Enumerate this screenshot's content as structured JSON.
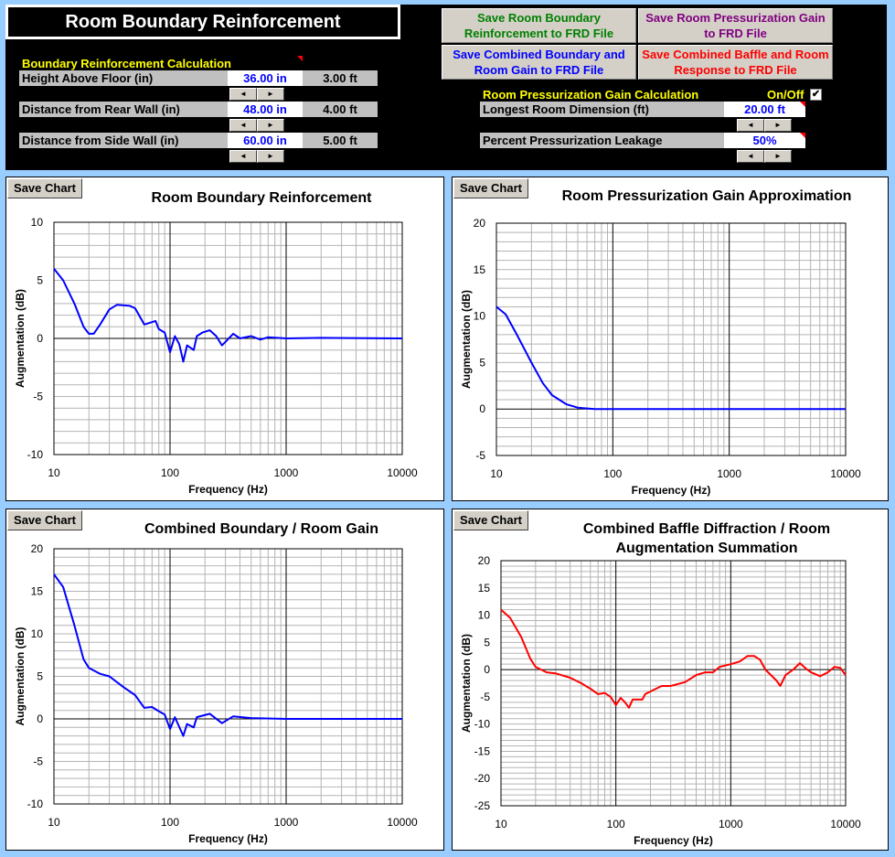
{
  "header": {
    "title": "Room Boundary Reinforcement"
  },
  "boundary": {
    "section_label": "Boundary Reinforcement Calculation",
    "rows": [
      {
        "label": "Height Above Floor (in)",
        "value": "36.00 in",
        "feet": "3.00 ft"
      },
      {
        "label": "Distance from Rear Wall (in)",
        "value": "48.00 in",
        "feet": "4.00 ft"
      },
      {
        "label": "Distance from Side Wall (in)",
        "value": "60.00 in",
        "feet": "5.00 ft"
      }
    ]
  },
  "pressurization": {
    "section_label": "Room Pressurization Gain Calculation",
    "onoff_label": "On/Off",
    "onoff_checked": true,
    "check_glyph": "✔",
    "rows": [
      {
        "label": "Longest Room Dimension (ft)",
        "value": "20.00 ft"
      },
      {
        "label": "Percent Pressurization Leakage",
        "value": "50%"
      }
    ]
  },
  "spinner": {
    "left": "◄",
    "right": "►"
  },
  "buttons": [
    {
      "label": "Save Room Boundary Reinforcement to FRD File",
      "color": "#008000"
    },
    {
      "label": "Save Room Pressurization Gain to FRD File",
      "color": "#800080"
    },
    {
      "label": "Save Combined Boundary and Room Gain to FRD File",
      "color": "#0000ff"
    },
    {
      "label": "Save Combined Baffle and Room Response to FRD File",
      "color": "#ff0000"
    }
  ],
  "save_chart_label": "Save Chart",
  "chart_data": [
    {
      "type": "line",
      "title": "Room Boundary Reinforcement",
      "xlabel": "Frequency (Hz)",
      "ylabel": "Augmentation (dB)",
      "xscale": "log",
      "xlim": [
        10,
        10000
      ],
      "ylim": [
        -10,
        10
      ],
      "yticks": [
        -10,
        -5,
        0,
        5,
        10
      ],
      "xticks": [
        10,
        100,
        1000,
        10000
      ],
      "grid": true,
      "color": "#0000ff",
      "x": [
        10,
        12,
        15,
        18,
        20,
        22,
        25,
        30,
        35,
        45,
        50,
        60,
        70,
        75,
        80,
        90,
        100,
        110,
        120,
        130,
        140,
        160,
        170,
        190,
        220,
        250,
        280,
        300,
        350,
        400,
        500,
        600,
        700,
        1000,
        2000,
        10000
      ],
      "y": [
        6,
        5,
        3,
        1,
        0.4,
        0.4,
        1.2,
        2.5,
        2.9,
        2.8,
        2.6,
        1.2,
        1.4,
        1.5,
        0.8,
        0.5,
        -1.2,
        0.2,
        -0.5,
        -2,
        -0.6,
        -1,
        0.2,
        0.5,
        0.7,
        0.2,
        -0.6,
        -0.3,
        0.4,
        0,
        0.2,
        -0.1,
        0.1,
        0,
        0.05,
        0
      ]
    },
    {
      "type": "line",
      "title": "Room Pressurization Gain Approximation",
      "xlabel": "Frequency (Hz)",
      "ylabel": "Augmentation (dB)",
      "xscale": "log",
      "xlim": [
        10,
        10000
      ],
      "ylim": [
        -5,
        20
      ],
      "yticks": [
        -5,
        0,
        5,
        10,
        15,
        20
      ],
      "xticks": [
        10,
        100,
        1000,
        10000
      ],
      "grid": true,
      "color": "#0000ff",
      "x": [
        10,
        12,
        15,
        20,
        25,
        30,
        40,
        50,
        70,
        10000
      ],
      "y": [
        11,
        10.2,
        8,
        5,
        2.8,
        1.5,
        0.5,
        0.15,
        0,
        0
      ]
    },
    {
      "type": "line",
      "title": "Combined Boundary / Room Gain",
      "xlabel": "Frequency (Hz)",
      "ylabel": "Augmentation (dB)",
      "xscale": "log",
      "xlim": [
        10,
        10000
      ],
      "ylim": [
        -10,
        20
      ],
      "yticks": [
        -10,
        -5,
        0,
        5,
        10,
        15,
        20
      ],
      "xticks": [
        10,
        100,
        1000,
        10000
      ],
      "grid": true,
      "color": "#0000ff",
      "x": [
        10,
        12,
        15,
        18,
        20,
        25,
        30,
        40,
        50,
        60,
        70,
        80,
        90,
        100,
        110,
        130,
        140,
        160,
        170,
        220,
        280,
        350,
        500,
        1000,
        10000
      ],
      "y": [
        17,
        15.5,
        11,
        7,
        6,
        5.3,
        5,
        3.7,
        2.8,
        1.3,
        1.4,
        0.9,
        0.5,
        -1.2,
        0.2,
        -2,
        -0.6,
        -1,
        0.2,
        0.6,
        -0.5,
        0.3,
        0.1,
        0,
        0
      ]
    },
    {
      "type": "line",
      "title": "Combined Baffle Diffraction / Room Augmentation Summation",
      "title_lines": [
        "Combined Baffle Diffraction / Room",
        "Augmentation Summation"
      ],
      "xlabel": "Frequency (Hz)",
      "ylabel": "Augmentation (dB)",
      "xscale": "log",
      "xlim": [
        10,
        10000
      ],
      "ylim": [
        -25,
        20
      ],
      "yticks": [
        -25,
        -20,
        -15,
        -10,
        -5,
        0,
        5,
        10,
        15,
        20
      ],
      "xticks": [
        10,
        100,
        1000,
        10000
      ],
      "grid": true,
      "color": "#ff0000",
      "x": [
        10,
        12,
        15,
        18,
        20,
        25,
        30,
        40,
        50,
        60,
        70,
        80,
        90,
        100,
        110,
        120,
        130,
        140,
        170,
        180,
        250,
        300,
        400,
        500,
        600,
        700,
        800,
        1000,
        1200,
        1400,
        1600,
        1800,
        2000,
        2500,
        2700,
        3000,
        3500,
        4000,
        4500,
        5000,
        6000,
        7000,
        8000,
        9000,
        10000
      ],
      "y": [
        11,
        9.5,
        6,
        2,
        0.5,
        -0.5,
        -0.7,
        -1.5,
        -2.5,
        -3.5,
        -4.5,
        -4.3,
        -5,
        -6.5,
        -5.2,
        -6,
        -7,
        -5.5,
        -5.5,
        -4.5,
        -3,
        -3,
        -2.3,
        -1,
        -0.5,
        -0.5,
        0.5,
        1,
        1.5,
        2.5,
        2.5,
        1.8,
        0,
        -2,
        -3,
        -1,
        0,
        1.2,
        0.2,
        -0.5,
        -1.2,
        -0.5,
        0.5,
        0.3,
        -1
      ]
    }
  ]
}
